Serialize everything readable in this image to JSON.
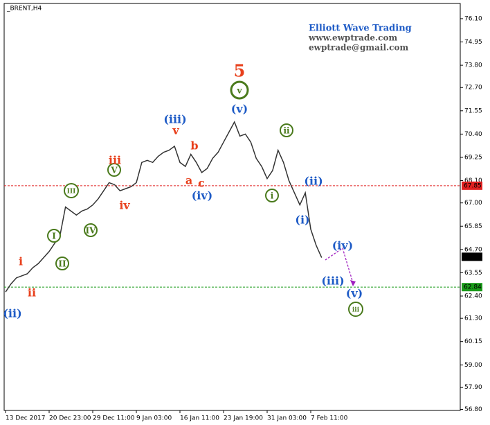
{
  "chart_data": {
    "type": "line",
    "symbol": "_BRENT,H4",
    "watermark": [
      "Elliott Wave Trading",
      "www.ewptrade.com",
      "ewptrade@gmail.com"
    ],
    "categories": [
      "13 Dec 2017",
      null,
      null,
      null,
      null,
      null,
      null,
      null,
      "20 Dec 23:00",
      null,
      null,
      null,
      null,
      null,
      null,
      null,
      "29 Dec 11:00",
      null,
      null,
      null,
      null,
      null,
      null,
      null,
      "9 Jan 03:00",
      null,
      null,
      null,
      null,
      null,
      null,
      null,
      "16 Jan 11:00",
      null,
      null,
      null,
      null,
      null,
      null,
      null,
      "23 Jan 19:00",
      null,
      null,
      null,
      null,
      null,
      null,
      null,
      "31 Jan 03:00",
      null,
      null,
      null,
      null,
      null,
      null,
      null,
      "7 Feb 11:00",
      null,
      null
    ],
    "series": [
      {
        "name": "BRENT",
        "color": "#333333",
        "values": [
          62.6,
          63.0,
          63.3,
          63.4,
          63.5,
          63.8,
          64.0,
          64.3,
          64.6,
          65.0,
          65.4,
          66.8,
          66.6,
          66.4,
          66.6,
          66.7,
          66.9,
          67.2,
          67.6,
          68.0,
          67.9,
          67.6,
          67.7,
          67.8,
          68.0,
          69.0,
          69.1,
          69.0,
          69.3,
          69.5,
          69.6,
          69.8,
          69.0,
          68.8,
          69.4,
          69.0,
          68.5,
          68.7,
          69.2,
          69.5,
          70.0,
          70.5,
          71.0,
          70.3,
          70.4,
          70.0,
          69.2,
          68.8,
          68.2,
          68.6,
          69.6,
          69.0,
          68.1,
          67.5,
          66.9,
          67.5,
          65.7,
          64.9,
          64.3
        ]
      }
    ],
    "ylim": [
      56.75,
      76.68
    ],
    "yticks": [
      {
        "value": 76.1,
        "label": "76.10"
      },
      {
        "value": 74.95,
        "label": "74.95"
      },
      {
        "value": 73.8,
        "label": "73.80"
      },
      {
        "value": 72.7,
        "label": "72.70"
      },
      {
        "value": 71.55,
        "label": "71.55"
      },
      {
        "value": 70.4,
        "label": "70.40"
      },
      {
        "value": 69.25,
        "label": "69.25"
      },
      {
        "value": 68.1,
        "label": "68.10"
      },
      {
        "value": 67,
        "label": "67.00"
      },
      {
        "value": 65.85,
        "label": "65.85"
      },
      {
        "value": 64.7,
        "label": "64.70"
      },
      {
        "value": 63.55,
        "label": "63.55"
      },
      {
        "value": 62.4,
        "label": "62.40"
      },
      {
        "value": 61.3,
        "label": "61.30"
      },
      {
        "value": 60.15,
        "label": "60.15"
      },
      {
        "value": 59,
        "label": "59.00"
      },
      {
        "value": 57.9,
        "label": "57.90"
      },
      {
        "value": 56.8,
        "label": "56.80"
      }
    ],
    "hlines": [
      {
        "value": 67.85,
        "label": "67.85",
        "color": "#e02020"
      },
      {
        "value": 62.84,
        "label": "62.84",
        "color": "#1a9a1a"
      }
    ],
    "last_price": {
      "value": 64.34,
      "label": "64.34"
    },
    "annotations": [
      {
        "text": "(ii)",
        "color": "#1e5bc6"
      },
      {
        "text": "i",
        "color": "#e8401c"
      },
      {
        "text": "ii",
        "color": "#e8401c"
      },
      {
        "text": "I",
        "color": "#4a7a1c",
        "circled": true
      },
      {
        "text": "II",
        "color": "#4a7a1c",
        "circled": true
      },
      {
        "text": "III",
        "color": "#4a7a1c",
        "circled": true
      },
      {
        "text": "IV",
        "color": "#4a7a1c",
        "circled": true
      },
      {
        "text": "V",
        "color": "#4a7a1c",
        "circled": true
      },
      {
        "text": "iii",
        "color": "#e8401c"
      },
      {
        "text": "iv",
        "color": "#e8401c"
      },
      {
        "text": "v",
        "color": "#e8401c"
      },
      {
        "text": "(iii)",
        "color": "#1e5bc6"
      },
      {
        "text": "b",
        "color": "#e8401c"
      },
      {
        "text": "a",
        "color": "#e8401c"
      },
      {
        "text": "c",
        "color": "#e8401c"
      },
      {
        "text": "(iv)",
        "color": "#1e5bc6"
      },
      {
        "text": "5",
        "color": "#e8401c"
      },
      {
        "text": "v",
        "color": "#4a7a1c",
        "circled": true
      },
      {
        "text": "(v)",
        "color": "#1e5bc6"
      },
      {
        "text": "ii",
        "color": "#4a7a1c",
        "circled": true
      },
      {
        "text": "i",
        "color": "#4a7a1c",
        "circled": true
      },
      {
        "text": "(ii)",
        "color": "#1e5bc6"
      },
      {
        "text": "(i)",
        "color": "#1e5bc6"
      },
      {
        "text": "(iv)",
        "color": "#1e5bc6"
      },
      {
        "text": "(iii)",
        "color": "#1e5bc6"
      },
      {
        "text": "(v)",
        "color": "#1e5bc6"
      },
      {
        "text": "iii",
        "color": "#4a7a1c",
        "circled": true
      }
    ]
  }
}
